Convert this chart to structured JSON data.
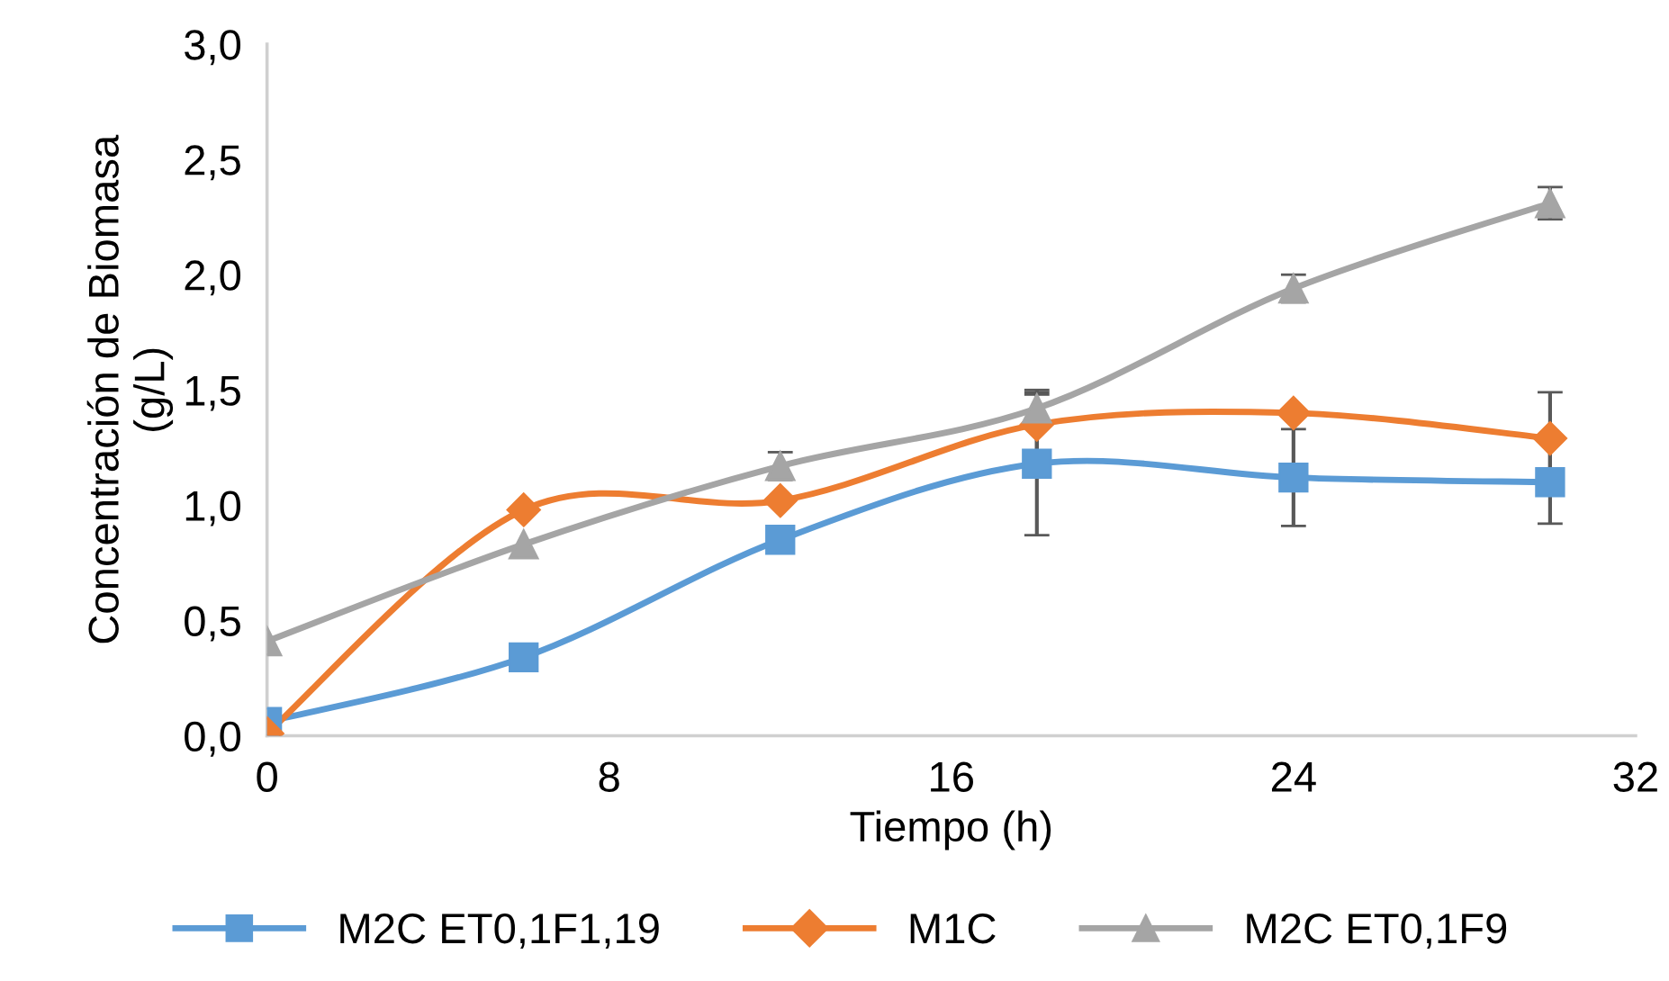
{
  "chart_data": {
    "type": "line",
    "xlabel": "Tiempo (h)",
    "ylabel": "Concentración de Biomasa\n(g/L)",
    "x": [
      0,
      6,
      12,
      18,
      24,
      30
    ],
    "series": [
      {
        "name": "M2C ET0,1F1,19",
        "color": "#5b9bd5",
        "marker": "square",
        "values": [
          0.06,
          0.34,
          0.85,
          1.18,
          1.12,
          1.1
        ],
        "errors": [
          null,
          null,
          null,
          0.31,
          0.21,
          0.18
        ]
      },
      {
        "name": "M1C",
        "color": "#ed7d31",
        "marker": "diamond",
        "values": [
          0.01,
          0.98,
          1.02,
          1.35,
          1.4,
          1.29
        ],
        "errors": [
          null,
          null,
          null,
          0.13,
          null,
          0.2
        ]
      },
      {
        "name": "M2C ET0,1F9",
        "color": "#a5a5a5",
        "marker": "triangle",
        "values": [
          0.41,
          0.83,
          1.17,
          1.42,
          1.94,
          2.31
        ],
        "errors": [
          null,
          null,
          0.06,
          0.08,
          0.06,
          0.07
        ]
      }
    ],
    "xlim": [
      0,
      32
    ],
    "xticks": [
      0,
      8,
      16,
      24,
      32
    ],
    "ylim": [
      0,
      3.0
    ],
    "yticks": [
      {
        "value": 0,
        "label": "0,0"
      },
      {
        "value": 0.5,
        "label": "0,5"
      },
      {
        "value": 1.0,
        "label": "1,0"
      },
      {
        "value": 1.5,
        "label": "1,5"
      },
      {
        "value": 2.0,
        "label": "2,0"
      },
      {
        "value": 2.5,
        "label": "2,5"
      },
      {
        "value": 3.0,
        "label": "3,0"
      }
    ],
    "grid": false,
    "legend": "bottom",
    "line_style": "solid"
  }
}
